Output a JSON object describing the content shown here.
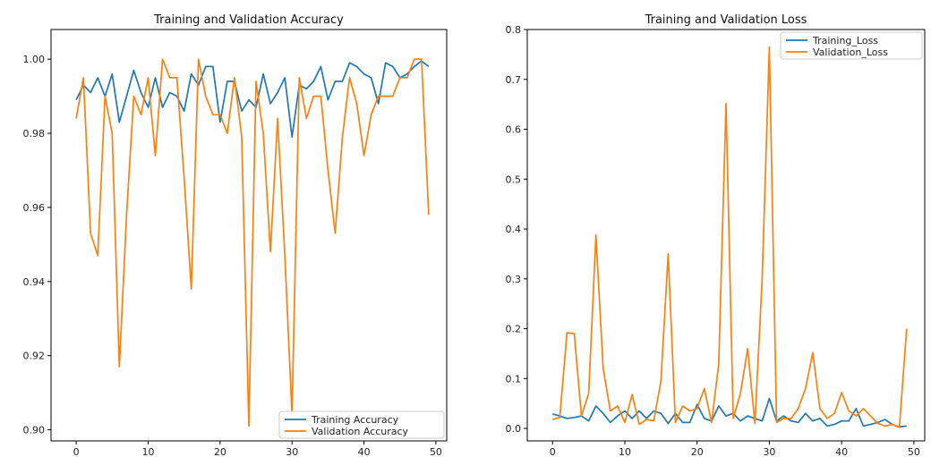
{
  "chart_data": [
    {
      "type": "line",
      "title": "Training and Validation Accuracy",
      "xlabel": "",
      "ylabel": "",
      "xlim": [
        -3.5,
        51.5
      ],
      "ylim": [
        0.897,
        1.008
      ],
      "x_ticks": [
        0,
        10,
        20,
        30,
        40,
        50
      ],
      "y_ticks": [
        0.9,
        0.92,
        0.94,
        0.96,
        0.98,
        1.0
      ],
      "y_tick_labels": [
        "0.90",
        "0.92",
        "0.94",
        "0.96",
        "0.98",
        "1.00"
      ],
      "legend_position": "lower-right",
      "grid": false,
      "x": [
        0,
        1,
        2,
        3,
        4,
        5,
        6,
        7,
        8,
        9,
        10,
        11,
        12,
        13,
        14,
        15,
        16,
        17,
        18,
        19,
        20,
        21,
        22,
        23,
        24,
        25,
        26,
        27,
        28,
        29,
        30,
        31,
        32,
        33,
        34,
        35,
        36,
        37,
        38,
        39,
        40,
        41,
        42,
        43,
        44,
        45,
        46,
        47,
        48,
        49
      ],
      "series": [
        {
          "name": "Training Accuracy",
          "color": "#1f77b4",
          "values": [
            0.989,
            0.993,
            0.991,
            0.995,
            0.99,
            0.996,
            0.983,
            0.99,
            0.997,
            0.991,
            0.987,
            0.995,
            0.987,
            0.991,
            0.99,
            0.986,
            0.996,
            0.993,
            0.998,
            0.998,
            0.983,
            0.994,
            0.994,
            0.986,
            0.989,
            0.987,
            0.996,
            0.988,
            0.991,
            0.995,
            0.979,
            0.993,
            0.992,
            0.994,
            0.998,
            0.989,
            0.994,
            0.994,
            0.999,
            0.998,
            0.996,
            0.995,
            0.988,
            0.999,
            0.998,
            0.995,
            0.996,
            0.998,
            0.9995,
            0.998
          ]
        },
        {
          "name": "Validation Accuracy",
          "color": "#ff7f0e",
          "values": [
            0.984,
            0.995,
            0.953,
            0.947,
            0.99,
            0.98,
            0.917,
            0.958,
            0.99,
            0.985,
            0.995,
            0.974,
            1.0,
            0.995,
            0.995,
            0.968,
            0.938,
            1.0,
            0.99,
            0.985,
            0.985,
            0.98,
            0.995,
            0.979,
            0.901,
            0.994,
            0.98,
            0.948,
            0.984,
            0.947,
            0.904,
            0.995,
            0.984,
            0.99,
            0.99,
            0.97,
            0.953,
            0.979,
            0.995,
            0.988,
            0.974,
            0.985,
            0.99,
            0.99,
            0.99,
            0.995,
            0.995,
            1.0,
            1.0,
            0.958
          ]
        }
      ]
    },
    {
      "type": "line",
      "title": "Training and Validation Loss",
      "xlabel": "",
      "ylabel": "",
      "xlim": [
        -3.5,
        51.5
      ],
      "ylim": [
        -0.025,
        0.8
      ],
      "x_ticks": [
        0,
        10,
        20,
        30,
        40,
        50
      ],
      "y_ticks": [
        0.0,
        0.1,
        0.2,
        0.3,
        0.4,
        0.5,
        0.6,
        0.7,
        0.8
      ],
      "y_tick_labels": [
        "0.0",
        "0.1",
        "0.2",
        "0.3",
        "0.4",
        "0.5",
        "0.6",
        "0.7",
        "0.8"
      ],
      "legend_position": "upper-right",
      "grid": false,
      "x": [
        0,
        1,
        2,
        3,
        4,
        5,
        6,
        7,
        8,
        9,
        10,
        11,
        12,
        13,
        14,
        15,
        16,
        17,
        18,
        19,
        20,
        21,
        22,
        23,
        24,
        25,
        26,
        27,
        28,
        29,
        30,
        31,
        32,
        33,
        34,
        35,
        36,
        37,
        38,
        39,
        40,
        41,
        42,
        43,
        44,
        45,
        46,
        47,
        48,
        49
      ],
      "series": [
        {
          "name": "Training_Loss",
          "color": "#1f77b4",
          "values": [
            0.029,
            0.025,
            0.02,
            0.022,
            0.025,
            0.015,
            0.045,
            0.03,
            0.012,
            0.025,
            0.035,
            0.02,
            0.035,
            0.02,
            0.035,
            0.03,
            0.01,
            0.03,
            0.012,
            0.012,
            0.048,
            0.02,
            0.015,
            0.045,
            0.025,
            0.03,
            0.015,
            0.025,
            0.02,
            0.015,
            0.06,
            0.015,
            0.025,
            0.015,
            0.012,
            0.03,
            0.015,
            0.02,
            0.005,
            0.008,
            0.015,
            0.015,
            0.04,
            0.005,
            0.008,
            0.012,
            0.018,
            0.008,
            0.003,
            0.005
          ]
        },
        {
          "name": "Validation_Loss",
          "color": "#ff7f0e",
          "values": [
            0.018,
            0.022,
            0.192,
            0.19,
            0.025,
            0.07,
            0.388,
            0.12,
            0.035,
            0.045,
            0.012,
            0.068,
            0.008,
            0.018,
            0.015,
            0.095,
            0.35,
            0.012,
            0.045,
            0.035,
            0.04,
            0.08,
            0.012,
            0.13,
            0.652,
            0.02,
            0.07,
            0.16,
            0.01,
            0.3,
            0.765,
            0.012,
            0.02,
            0.02,
            0.04,
            0.08,
            0.152,
            0.04,
            0.02,
            0.03,
            0.072,
            0.035,
            0.025,
            0.04,
            0.025,
            0.01,
            0.005,
            0.008,
            0.002,
            0.2
          ]
        }
      ]
    }
  ]
}
